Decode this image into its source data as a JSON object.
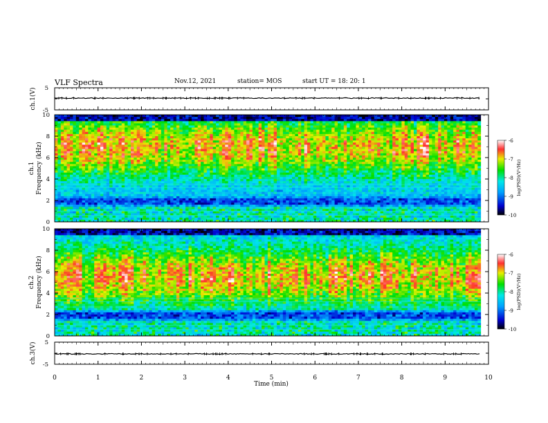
{
  "header": {
    "title": "VLF Spectra",
    "date": "Nov.12, 2021",
    "station": "station= MOS",
    "start_ut": "start  UT =  18: 20: 1"
  },
  "chart_data": [
    {
      "type": "line",
      "name": "ch1_waveform",
      "ylabel": "ch.1(V)",
      "ylim": [
        -5,
        5
      ],
      "yticks": [
        "5",
        "-5"
      ],
      "x_range_min": [
        0,
        10
      ],
      "data_end_min": 9.82
    },
    {
      "type": "heatmap",
      "name": "ch1_spectrogram",
      "ylabel_channel": "ch.1",
      "ylabel": "Frequency (kHz)",
      "ylim_khz": [
        0,
        10
      ],
      "yticks": [
        "0",
        "2",
        "4",
        "6",
        "8",
        "10"
      ],
      "x_range_min": [
        0,
        10
      ],
      "data_end_min": 9.82,
      "colorbar": {
        "label": "log(PSD)(V²/Hz)",
        "range": [
          -10,
          -6
        ],
        "ticks": [
          "-6",
          "-7",
          "-8",
          "-9",
          "-10"
        ]
      }
    },
    {
      "type": "heatmap",
      "name": "ch2_spectrogram",
      "ylabel_channel": "ch.2",
      "ylabel": "Frequency (kHz)",
      "ylim_khz": [
        0,
        10
      ],
      "yticks": [
        "0",
        "2",
        "4",
        "6",
        "8",
        "10"
      ],
      "x_range_min": [
        0,
        10
      ],
      "data_end_min": 9.82,
      "colorbar": {
        "label": "log(PSD)(V²/Hz)",
        "range": [
          -10,
          -6
        ],
        "ticks": [
          "-6",
          "-7",
          "-8",
          "-9",
          "-10"
        ]
      }
    },
    {
      "type": "line",
      "name": "ch3_waveform",
      "ylabel": "ch.3(V)",
      "ylim": [
        -5,
        5
      ],
      "yticks": [
        "5",
        "-5"
      ],
      "x_range_min": [
        0,
        10
      ],
      "data_end_min": 9.82
    }
  ],
  "xaxis": {
    "label": "Time (min)",
    "ticks": [
      "0",
      "1",
      "2",
      "3",
      "4",
      "5",
      "6",
      "7",
      "8",
      "9",
      "10"
    ]
  }
}
